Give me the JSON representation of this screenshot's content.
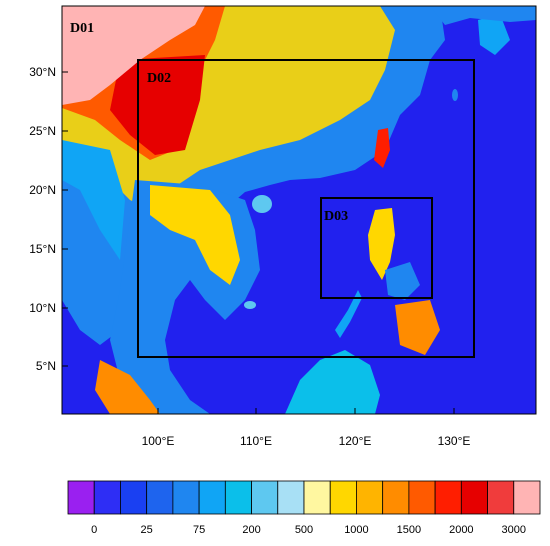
{
  "map": {
    "lon_labels": [
      "100°E",
      "110°E",
      "120°E",
      "130°E"
    ],
    "lat_labels": [
      "5°N",
      "10°N",
      "15°N",
      "20°N",
      "25°N",
      "30°N"
    ],
    "domains": [
      {
        "label": "D01"
      },
      {
        "label": "D02"
      },
      {
        "label": "D03"
      }
    ]
  },
  "colorbar": {
    "colors": [
      "#9a20f0",
      "#2e2ef5",
      "#1a40f2",
      "#1e64ee",
      "#1f86f0",
      "#10a5f5",
      "#0bbfea",
      "#5ec8f0",
      "#a8e0f5",
      "#fff7a0",
      "#ffd700",
      "#ffb400",
      "#ff8c00",
      "#ff5a00",
      "#ff1e00",
      "#e60000",
      "#f03c3c",
      "#ffb4b4"
    ],
    "labels": [
      "0",
      "25",
      "75",
      "200",
      "500",
      "1000",
      "1500",
      "2000",
      "3000"
    ],
    "colors_semantic": {
      "ocean": "#2121ee",
      "terrain_low": "#1f86f0",
      "terrain_high": "#e60000",
      "d01_pink": "#ffb4b4"
    }
  }
}
